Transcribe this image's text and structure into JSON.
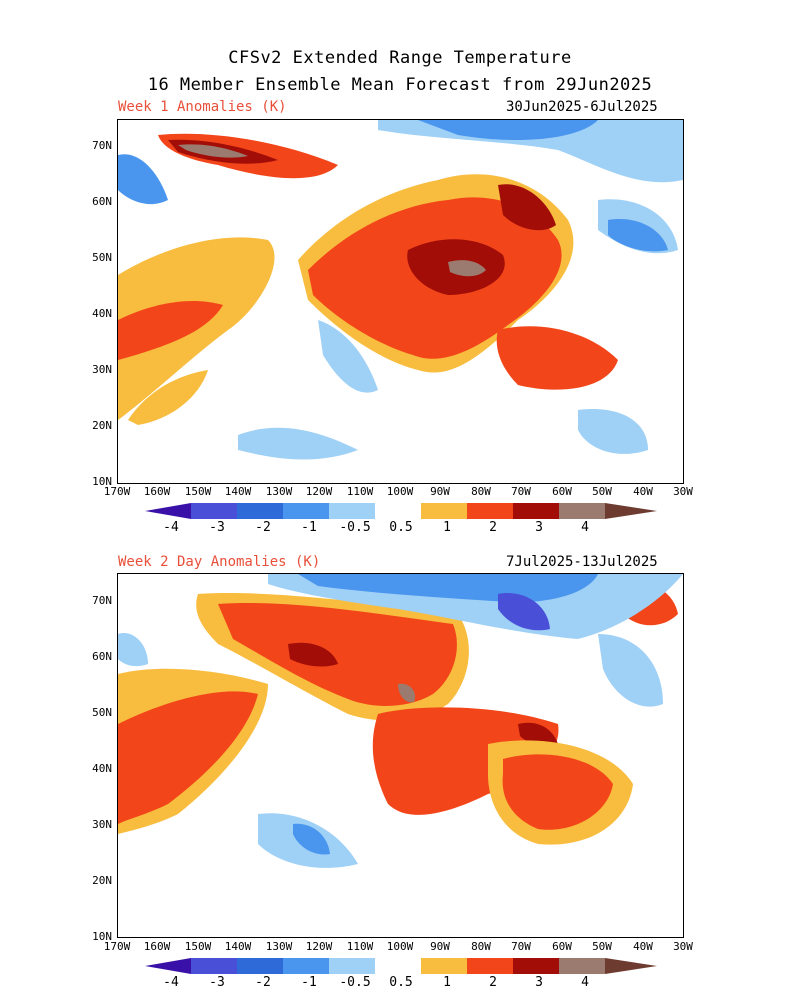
{
  "header": {
    "title_line1": "CFSv2 Extended Range Temperature",
    "title_line2": "16 Member Ensemble Mean Forecast from 29Jun2025"
  },
  "panels": [
    {
      "label": "Week 1 Anomalies (K)",
      "dates": "30Jun2025-6Jul2025"
    },
    {
      "label": "Week 2 Day Anomalies (K)",
      "dates": "7Jul2025-13Jul2025"
    }
  ],
  "axes": {
    "lat_labels": [
      "70N",
      "60N",
      "50N",
      "40N",
      "30N",
      "20N",
      "10N"
    ],
    "lon_labels": [
      "170W",
      "160W",
      "150W",
      "140W",
      "130W",
      "120W",
      "110W",
      "100W",
      "90W",
      "80W",
      "70W",
      "60W",
      "50W",
      "40W",
      "30W"
    ]
  },
  "colorbar": {
    "labels": [
      "-4",
      "-3",
      "-2",
      "-1",
      "-0.5",
      "0.5",
      "1",
      "2",
      "3",
      "4"
    ],
    "colors": [
      "#3a11a8",
      "#4a4fd8",
      "#2f6bd8",
      "#4a95ee",
      "#9fd0f6",
      "#ffffff",
      "#f8bd3e",
      "#f2461a",
      "#a30d07",
      "#9b7a70",
      "#6d3b30"
    ]
  }
}
